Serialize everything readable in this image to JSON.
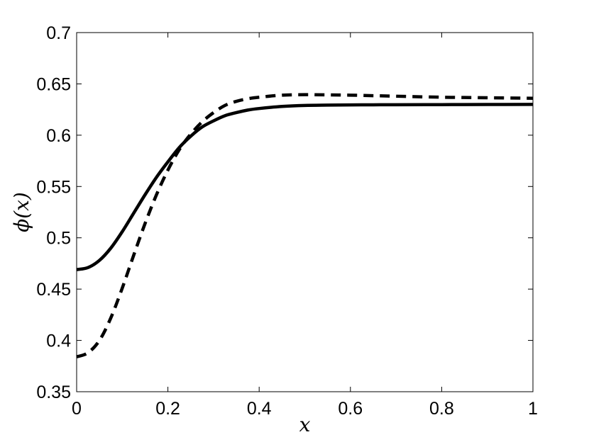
{
  "chart_data": {
    "type": "line",
    "title": "",
    "xlabel": "x",
    "ylabel": "ϕ(x)",
    "xlim": [
      0,
      1
    ],
    "ylim": [
      0.35,
      0.7
    ],
    "xticks": [
      0,
      0.2,
      0.4,
      0.6,
      0.8,
      1
    ],
    "xtick_labels": [
      "0",
      "0.2",
      "0.4",
      "0.6",
      "0.8",
      "1"
    ],
    "yticks": [
      0.35,
      0.4,
      0.45,
      0.5,
      0.55,
      0.6,
      0.65,
      0.7
    ],
    "ytick_labels": [
      "0.35",
      "0.4",
      "0.45",
      "0.5",
      "0.55",
      "0.6",
      "0.65",
      "0.7"
    ],
    "grid": false,
    "legend": "none",
    "series": [
      {
        "style": "solid",
        "color": "#000000",
        "x": [
          0,
          0.025,
          0.05,
          0.075,
          0.1,
          0.125,
          0.15,
          0.175,
          0.2,
          0.225,
          0.25,
          0.275,
          0.3,
          0.325,
          0.35,
          0.375,
          0.4,
          0.45,
          0.5,
          0.55,
          0.6,
          0.65,
          0.7,
          0.8,
          0.9,
          1.0
        ],
        "y": [
          0.469,
          0.471,
          0.478,
          0.49,
          0.506,
          0.524,
          0.542,
          0.559,
          0.574,
          0.588,
          0.599,
          0.608,
          0.614,
          0.619,
          0.622,
          0.6245,
          0.626,
          0.628,
          0.629,
          0.6293,
          0.6295,
          0.6296,
          0.6297,
          0.6298,
          0.6299,
          0.63
        ]
      },
      {
        "style": "dashed",
        "color": "#000000",
        "x": [
          0,
          0.025,
          0.05,
          0.075,
          0.1,
          0.125,
          0.15,
          0.175,
          0.2,
          0.225,
          0.25,
          0.275,
          0.3,
          0.325,
          0.35,
          0.375,
          0.4,
          0.45,
          0.5,
          0.55,
          0.6,
          0.65,
          0.7,
          0.8,
          0.9,
          1.0
        ],
        "y": [
          0.384,
          0.388,
          0.4,
          0.422,
          0.451,
          0.483,
          0.514,
          0.542,
          0.566,
          0.586,
          0.601,
          0.613,
          0.622,
          0.629,
          0.633,
          0.6355,
          0.637,
          0.639,
          0.6395,
          0.6393,
          0.639,
          0.6385,
          0.638,
          0.637,
          0.6365,
          0.636
        ]
      }
    ]
  }
}
